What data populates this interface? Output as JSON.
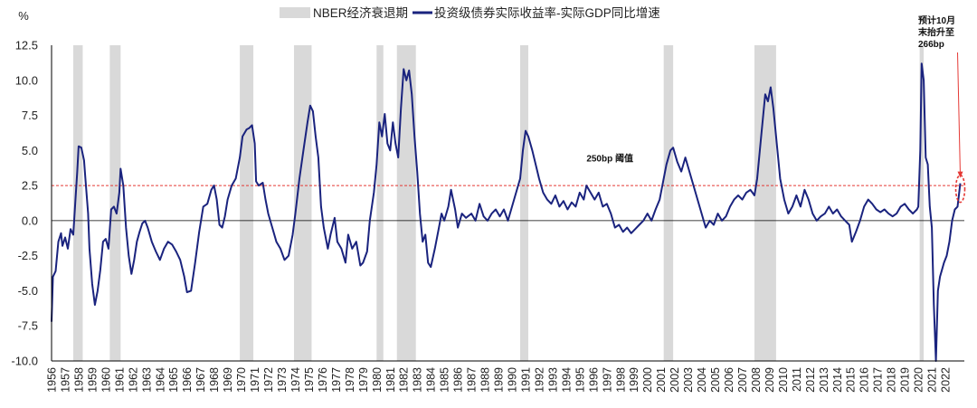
{
  "chart_data": {
    "type": "line",
    "title": "",
    "ylabel": "%",
    "xlabel": "",
    "ylim": [
      -10.0,
      12.5
    ],
    "yticks": [
      "12.5",
      "10.0",
      "7.5",
      "5.0",
      "2.5",
      "0.0",
      "-2.5",
      "-5.0",
      "-7.5",
      "-10.0"
    ],
    "ytick_values": [
      12.5,
      10.0,
      7.5,
      5.0,
      2.5,
      0.0,
      -2.5,
      -5.0,
      -7.5,
      -10.0
    ],
    "xlim": [
      1956.0,
      2023.4
    ],
    "x_tick_labels": [
      "1956",
      "1957",
      "1958",
      "1959",
      "1960",
      "1961",
      "1962",
      "1963",
      "1964",
      "1965",
      "1966",
      "1967",
      "1968",
      "1969",
      "1970",
      "1971",
      "1972",
      "1973",
      "1974",
      "1975",
      "1976",
      "1977",
      "1978",
      "1979",
      "1980",
      "1981",
      "1982",
      "1983",
      "1984",
      "1985",
      "1986",
      "1987",
      "1988",
      "1989",
      "1990",
      "1991",
      "1992",
      "1993",
      "1994",
      "1995",
      "1996",
      "1997",
      "1998",
      "1999",
      "2000",
      "2001",
      "2002",
      "2003",
      "2004",
      "2005",
      "2006",
      "2007",
      "2008",
      "2009",
      "2010",
      "2011",
      "2012",
      "2013",
      "2014",
      "2015",
      "2016",
      "2017",
      "2018",
      "2019",
      "2020",
      "2021",
      "2022"
    ],
    "legend": {
      "recession_label": "NBER经济衰退期",
      "series_label": "投资级债券实际收益率-实际GDP同比增速"
    },
    "colors": {
      "series": "#1a237e",
      "recession": "#d9d9d9",
      "threshold": "#e53935",
      "annotation": "#e53935"
    },
    "recessions": [
      [
        1957.6,
        1958.3
      ],
      [
        1960.3,
        1961.1
      ],
      [
        1969.9,
        1970.9
      ],
      [
        1973.9,
        1975.2
      ],
      [
        1980.0,
        1980.5
      ],
      [
        1981.5,
        1982.9
      ],
      [
        1990.6,
        1991.2
      ],
      [
        2001.2,
        2001.9
      ],
      [
        2007.9,
        2009.5
      ],
      [
        2020.1,
        2020.4
      ]
    ],
    "threshold": {
      "value": 2.5,
      "label": "250bp 阈值",
      "label_x": 1995.5,
      "label_y": 4.2
    },
    "annotation": {
      "lines": [
        "预计10月",
        "末抬升至",
        "266bp"
      ],
      "value": 2.66,
      "x": 2023.1
    },
    "series": [
      {
        "name": "投资级债券实际收益率-实际GDP同比增速",
        "points": [
          [
            1956.0,
            -7.2
          ],
          [
            1956.1,
            -4.0
          ],
          [
            1956.3,
            -3.6
          ],
          [
            1956.5,
            -1.5
          ],
          [
            1956.7,
            -0.9
          ],
          [
            1956.8,
            -1.8
          ],
          [
            1957.0,
            -1.2
          ],
          [
            1957.2,
            -2.0
          ],
          [
            1957.4,
            -0.6
          ],
          [
            1957.6,
            -1.0
          ],
          [
            1957.8,
            2.0
          ],
          [
            1957.9,
            3.5
          ],
          [
            1958.0,
            5.3
          ],
          [
            1958.2,
            5.2
          ],
          [
            1958.4,
            4.3
          ],
          [
            1958.5,
            3.0
          ],
          [
            1958.7,
            0.5
          ],
          [
            1958.8,
            -2.0
          ],
          [
            1959.0,
            -4.5
          ],
          [
            1959.2,
            -6.0
          ],
          [
            1959.4,
            -5.0
          ],
          [
            1959.6,
            -3.5
          ],
          [
            1959.8,
            -1.5
          ],
          [
            1960.0,
            -1.3
          ],
          [
            1960.2,
            -2.0
          ],
          [
            1960.4,
            0.8
          ],
          [
            1960.6,
            1.0
          ],
          [
            1960.8,
            0.5
          ],
          [
            1961.0,
            2.0
          ],
          [
            1961.1,
            3.7
          ],
          [
            1961.3,
            2.5
          ],
          [
            1961.5,
            -0.5
          ],
          [
            1961.7,
            -2.5
          ],
          [
            1961.9,
            -3.8
          ],
          [
            1962.1,
            -2.8
          ],
          [
            1962.3,
            -1.5
          ],
          [
            1962.5,
            -0.8
          ],
          [
            1962.7,
            -0.2
          ],
          [
            1962.9,
            0.0
          ],
          [
            1963.1,
            -0.5
          ],
          [
            1963.4,
            -1.5
          ],
          [
            1963.7,
            -2.2
          ],
          [
            1964.0,
            -2.8
          ],
          [
            1964.3,
            -2.0
          ],
          [
            1964.6,
            -1.5
          ],
          [
            1964.9,
            -1.7
          ],
          [
            1965.2,
            -2.2
          ],
          [
            1965.5,
            -2.8
          ],
          [
            1965.8,
            -4.0
          ],
          [
            1966.0,
            -5.1
          ],
          [
            1966.3,
            -5.0
          ],
          [
            1966.6,
            -3.0
          ],
          [
            1966.9,
            -0.8
          ],
          [
            1967.2,
            1.0
          ],
          [
            1967.5,
            1.2
          ],
          [
            1967.8,
            2.2
          ],
          [
            1968.0,
            2.5
          ],
          [
            1968.2,
            1.5
          ],
          [
            1968.4,
            -0.3
          ],
          [
            1968.6,
            -0.5
          ],
          [
            1968.8,
            0.3
          ],
          [
            1969.0,
            1.5
          ],
          [
            1969.3,
            2.5
          ],
          [
            1969.6,
            3.0
          ],
          [
            1969.9,
            4.5
          ],
          [
            1970.1,
            6.0
          ],
          [
            1970.4,
            6.5
          ],
          [
            1970.6,
            6.6
          ],
          [
            1970.8,
            6.8
          ],
          [
            1971.0,
            5.5
          ],
          [
            1971.1,
            2.8
          ],
          [
            1971.3,
            2.5
          ],
          [
            1971.6,
            2.7
          ],
          [
            1971.8,
            1.5
          ],
          [
            1972.0,
            0.5
          ],
          [
            1972.3,
            -0.5
          ],
          [
            1972.6,
            -1.5
          ],
          [
            1972.9,
            -2.0
          ],
          [
            1973.2,
            -2.8
          ],
          [
            1973.5,
            -2.5
          ],
          [
            1973.8,
            -1.0
          ],
          [
            1974.0,
            0.5
          ],
          [
            1974.3,
            3.0
          ],
          [
            1974.6,
            5.0
          ],
          [
            1974.9,
            7.0
          ],
          [
            1975.1,
            8.2
          ],
          [
            1975.3,
            7.8
          ],
          [
            1975.5,
            6.0
          ],
          [
            1975.7,
            4.5
          ],
          [
            1975.9,
            1.0
          ],
          [
            1976.1,
            -0.5
          ],
          [
            1976.4,
            -2.0
          ],
          [
            1976.6,
            -1.0
          ],
          [
            1976.9,
            0.2
          ],
          [
            1977.1,
            -1.5
          ],
          [
            1977.4,
            -2.0
          ],
          [
            1977.7,
            -3.0
          ],
          [
            1977.9,
            -1.0
          ],
          [
            1978.2,
            -2.0
          ],
          [
            1978.5,
            -1.5
          ],
          [
            1978.8,
            -3.2
          ],
          [
            1979.0,
            -3.0
          ],
          [
            1979.3,
            -2.2
          ],
          [
            1979.5,
            0.0
          ],
          [
            1979.8,
            2.0
          ],
          [
            1980.0,
            4.0
          ],
          [
            1980.2,
            7.0
          ],
          [
            1980.4,
            6.0
          ],
          [
            1980.6,
            7.6
          ],
          [
            1980.8,
            5.5
          ],
          [
            1981.0,
            5.0
          ],
          [
            1981.2,
            7.0
          ],
          [
            1981.4,
            5.5
          ],
          [
            1981.6,
            4.5
          ],
          [
            1981.8,
            8.0
          ],
          [
            1982.0,
            10.8
          ],
          [
            1982.2,
            10.0
          ],
          [
            1982.4,
            10.7
          ],
          [
            1982.6,
            9.0
          ],
          [
            1982.8,
            6.0
          ],
          [
            1983.0,
            3.5
          ],
          [
            1983.2,
            0.5
          ],
          [
            1983.4,
            -1.5
          ],
          [
            1983.6,
            -1.0
          ],
          [
            1983.8,
            -3.0
          ],
          [
            1984.0,
            -3.3
          ],
          [
            1984.3,
            -2.0
          ],
          [
            1984.6,
            -0.5
          ],
          [
            1984.8,
            0.5
          ],
          [
            1985.0,
            0.0
          ],
          [
            1985.3,
            1.0
          ],
          [
            1985.5,
            2.2
          ],
          [
            1985.8,
            0.8
          ],
          [
            1986.0,
            -0.5
          ],
          [
            1986.3,
            0.5
          ],
          [
            1986.6,
            0.2
          ],
          [
            1987.0,
            0.5
          ],
          [
            1987.3,
            0.0
          ],
          [
            1987.6,
            1.2
          ],
          [
            1987.9,
            0.3
          ],
          [
            1988.2,
            0.0
          ],
          [
            1988.5,
            0.5
          ],
          [
            1988.8,
            0.8
          ],
          [
            1989.1,
            0.3
          ],
          [
            1989.4,
            0.8
          ],
          [
            1989.7,
            0.0
          ],
          [
            1990.0,
            1.0
          ],
          [
            1990.3,
            2.0
          ],
          [
            1990.6,
            3.0
          ],
          [
            1990.8,
            5.0
          ],
          [
            1991.0,
            6.4
          ],
          [
            1991.2,
            6.0
          ],
          [
            1991.5,
            5.0
          ],
          [
            1991.8,
            3.8
          ],
          [
            1992.0,
            3.0
          ],
          [
            1992.3,
            2.0
          ],
          [
            1992.6,
            1.5
          ],
          [
            1992.9,
            1.2
          ],
          [
            1993.2,
            1.8
          ],
          [
            1993.5,
            1.0
          ],
          [
            1993.8,
            1.4
          ],
          [
            1994.1,
            0.8
          ],
          [
            1994.4,
            1.3
          ],
          [
            1994.7,
            1.0
          ],
          [
            1995.0,
            2.0
          ],
          [
            1995.3,
            1.5
          ],
          [
            1995.5,
            2.5
          ],
          [
            1995.8,
            2.0
          ],
          [
            1996.1,
            1.5
          ],
          [
            1996.4,
            2.0
          ],
          [
            1996.7,
            1.0
          ],
          [
            1997.0,
            1.2
          ],
          [
            1997.3,
            0.5
          ],
          [
            1997.6,
            -0.5
          ],
          [
            1997.9,
            -0.3
          ],
          [
            1998.2,
            -0.8
          ],
          [
            1998.5,
            -0.5
          ],
          [
            1998.8,
            -0.9
          ],
          [
            1999.1,
            -0.6
          ],
          [
            1999.4,
            -0.3
          ],
          [
            1999.7,
            0.0
          ],
          [
            2000.0,
            0.5
          ],
          [
            2000.3,
            0.0
          ],
          [
            2000.6,
            0.8
          ],
          [
            2000.9,
            1.5
          ],
          [
            2001.1,
            2.5
          ],
          [
            2001.4,
            4.0
          ],
          [
            2001.7,
            5.0
          ],
          [
            2001.9,
            5.2
          ],
          [
            2002.2,
            4.2
          ],
          [
            2002.5,
            3.5
          ],
          [
            2002.8,
            4.5
          ],
          [
            2003.1,
            3.5
          ],
          [
            2003.4,
            2.5
          ],
          [
            2003.7,
            1.5
          ],
          [
            2004.0,
            0.5
          ],
          [
            2004.3,
            -0.5
          ],
          [
            2004.6,
            0.0
          ],
          [
            2004.9,
            -0.3
          ],
          [
            2005.2,
            0.5
          ],
          [
            2005.5,
            0.0
          ],
          [
            2005.8,
            0.3
          ],
          [
            2006.1,
            1.0
          ],
          [
            2006.4,
            1.5
          ],
          [
            2006.7,
            1.8
          ],
          [
            2007.0,
            1.5
          ],
          [
            2007.3,
            2.0
          ],
          [
            2007.6,
            2.2
          ],
          [
            2007.9,
            1.8
          ],
          [
            2008.1,
            3.0
          ],
          [
            2008.4,
            6.0
          ],
          [
            2008.7,
            9.0
          ],
          [
            2008.9,
            8.5
          ],
          [
            2009.1,
            9.5
          ],
          [
            2009.3,
            8.0
          ],
          [
            2009.6,
            5.0
          ],
          [
            2009.8,
            3.0
          ],
          [
            2010.1,
            1.5
          ],
          [
            2010.4,
            0.5
          ],
          [
            2010.7,
            1.0
          ],
          [
            2011.0,
            1.8
          ],
          [
            2011.3,
            1.0
          ],
          [
            2011.6,
            2.2
          ],
          [
            2011.9,
            1.5
          ],
          [
            2012.2,
            0.5
          ],
          [
            2012.5,
            0.0
          ],
          [
            2012.8,
            0.3
          ],
          [
            2013.1,
            0.5
          ],
          [
            2013.4,
            1.0
          ],
          [
            2013.7,
            0.5
          ],
          [
            2014.0,
            0.8
          ],
          [
            2014.3,
            0.3
          ],
          [
            2014.6,
            0.0
          ],
          [
            2014.9,
            -0.3
          ],
          [
            2015.1,
            -1.5
          ],
          [
            2015.4,
            -0.8
          ],
          [
            2015.7,
            0.0
          ],
          [
            2016.0,
            1.0
          ],
          [
            2016.3,
            1.5
          ],
          [
            2016.6,
            1.2
          ],
          [
            2016.9,
            0.8
          ],
          [
            2017.2,
            0.6
          ],
          [
            2017.5,
            0.8
          ],
          [
            2017.8,
            0.5
          ],
          [
            2018.1,
            0.3
          ],
          [
            2018.4,
            0.5
          ],
          [
            2018.7,
            1.0
          ],
          [
            2019.0,
            1.2
          ],
          [
            2019.3,
            0.8
          ],
          [
            2019.6,
            0.5
          ],
          [
            2019.9,
            0.8
          ],
          [
            2020.0,
            1.0
          ],
          [
            2020.15,
            5.0
          ],
          [
            2020.25,
            11.2
          ],
          [
            2020.4,
            10.0
          ],
          [
            2020.55,
            4.5
          ],
          [
            2020.7,
            4.0
          ],
          [
            2020.85,
            1.0
          ],
          [
            2021.0,
            -0.5
          ],
          [
            2021.15,
            -6.0
          ],
          [
            2021.3,
            -10.0
          ],
          [
            2021.45,
            -5.0
          ],
          [
            2021.6,
            -4.0
          ],
          [
            2021.75,
            -3.5
          ],
          [
            2021.9,
            -3.0
          ],
          [
            2022.1,
            -2.5
          ],
          [
            2022.3,
            -1.5
          ],
          [
            2022.5,
            0.0
          ],
          [
            2022.7,
            0.8
          ],
          [
            2022.9,
            1.0
          ],
          [
            2023.1,
            2.66
          ]
        ]
      }
    ]
  }
}
